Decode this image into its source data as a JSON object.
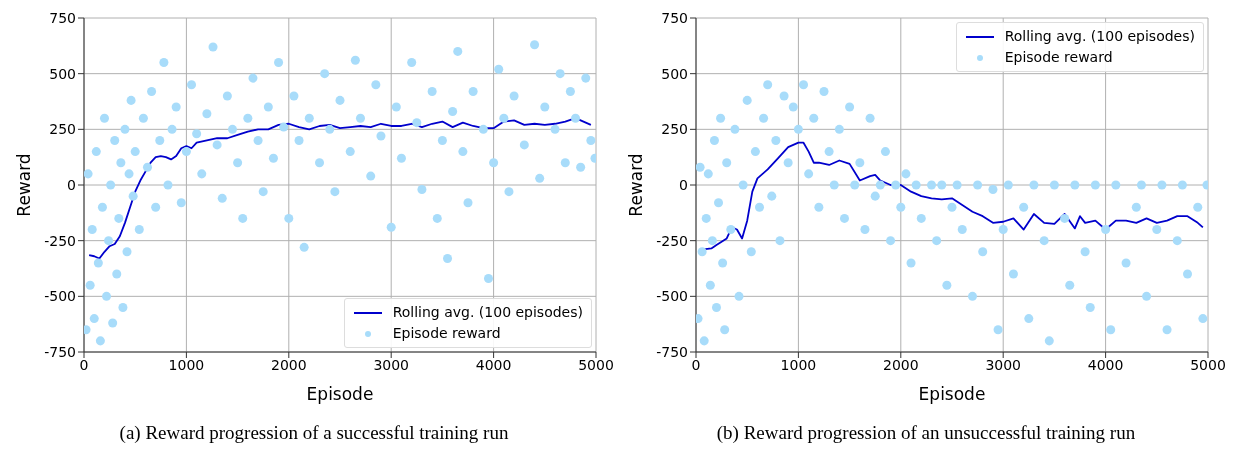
{
  "chart_data": [
    {
      "type": "scatter",
      "xlabel": "Episode",
      "ylabel": "Reward",
      "annotations": [
        "(a) Reward progression of a successful training run"
      ],
      "xlim": [
        0,
        5000
      ],
      "xticks": [
        0,
        1000,
        2000,
        3000,
        4000,
        5000
      ],
      "ylim": [
        -750,
        750
      ],
      "yticks": [
        -750,
        -500,
        -250,
        0,
        250,
        500,
        750
      ],
      "grid": true,
      "legend": "bottom right",
      "series": [
        {
          "name": "Rolling avg. (100 episodes)",
          "type": "line",
          "marker": "none",
          "color": "#0000cc",
          "x": [
            50,
            100,
            150,
            200,
            250,
            300,
            350,
            400,
            450,
            500,
            550,
            600,
            650,
            700,
            750,
            800,
            850,
            900,
            950,
            1000,
            1050,
            1100,
            1200,
            1300,
            1400,
            1500,
            1600,
            1700,
            1800,
            1900,
            2000,
            2100,
            2200,
            2300,
            2400,
            2500,
            2600,
            2700,
            2800,
            2900,
            3000,
            3100,
            3200,
            3300,
            3400,
            3500,
            3600,
            3700,
            3800,
            3900,
            4000,
            4100,
            4200,
            4300,
            4400,
            4500,
            4600,
            4700,
            4800,
            4900,
            4950
          ],
          "values": [
            -315,
            -320,
            -330,
            -300,
            -275,
            -265,
            -230,
            -170,
            -100,
            -30,
            20,
            60,
            100,
            125,
            130,
            125,
            115,
            130,
            165,
            175,
            165,
            190,
            200,
            210,
            210,
            225,
            240,
            250,
            250,
            270,
            275,
            260,
            250,
            265,
            270,
            255,
            260,
            265,
            260,
            275,
            265,
            265,
            275,
            260,
            275,
            285,
            260,
            280,
            265,
            255,
            255,
            285,
            290,
            270,
            275,
            270,
            275,
            285,
            300,
            280,
            270
          ]
        },
        {
          "name": "Episode reward",
          "type": "scatter",
          "marker": "circle",
          "color": "#a8dcfa",
          "x": [
            20,
            40,
            60,
            80,
            100,
            120,
            140,
            160,
            180,
            200,
            220,
            240,
            260,
            280,
            300,
            320,
            340,
            360,
            380,
            400,
            420,
            440,
            460,
            480,
            500,
            540,
            580,
            620,
            660,
            700,
            740,
            780,
            820,
            860,
            900,
            950,
            1000,
            1050,
            1100,
            1150,
            1200,
            1260,
            1300,
            1350,
            1400,
            1450,
            1500,
            1550,
            1600,
            1650,
            1700,
            1750,
            1800,
            1850,
            1900,
            1950,
            2000,
            2050,
            2100,
            2150,
            2200,
            2300,
            2350,
            2400,
            2450,
            2500,
            2600,
            2650,
            2700,
            2800,
            2850,
            2900,
            3000,
            3050,
            3100,
            3200,
            3250,
            3300,
            3400,
            3450,
            3500,
            3550,
            3600,
            3650,
            3700,
            3750,
            3800,
            3900,
            3950,
            4000,
            4050,
            4100,
            4150,
            4200,
            4300,
            4400,
            4450,
            4500,
            4600,
            4650,
            4700,
            4750,
            4800,
            4850,
            4900,
            4950,
            4990
          ],
          "values": [
            -650,
            50,
            -450,
            -200,
            -600,
            150,
            -350,
            -700,
            -100,
            300,
            -500,
            -250,
            0,
            -620,
            200,
            -400,
            -150,
            100,
            -550,
            250,
            -300,
            50,
            380,
            -50,
            150,
            -200,
            300,
            80,
            420,
            -100,
            200,
            550,
            0,
            250,
            350,
            -80,
            150,
            450,
            230,
            50,
            320,
            620,
            180,
            -60,
            400,
            250,
            100,
            -150,
            300,
            480,
            200,
            -30,
            350,
            120,
            550,
            260,
            -150,
            400,
            200,
            -280,
            300,
            100,
            500,
            250,
            -30,
            380,
            150,
            560,
            300,
            40,
            450,
            220,
            -190,
            350,
            120,
            550,
            280,
            -20,
            420,
            -150,
            200,
            -330,
            330,
            600,
            150,
            -80,
            420,
            250,
            -420,
            100,
            520,
            300,
            -30,
            400,
            180,
            630,
            30,
            350,
            250,
            500,
            100,
            420,
            300,
            80,
            480,
            200,
            120
          ]
        }
      ]
    },
    {
      "type": "scatter",
      "xlabel": "Episode",
      "ylabel": "Reward",
      "annotations": [
        "(b) Reward progression of an unsuccessful training run"
      ],
      "xlim": [
        0,
        5000
      ],
      "xticks": [
        0,
        1000,
        2000,
        3000,
        4000,
        5000
      ],
      "ylim": [
        -750,
        750
      ],
      "yticks": [
        -750,
        -500,
        -250,
        0,
        250,
        500,
        750
      ],
      "grid": true,
      "legend": "top right",
      "series": [
        {
          "name": "Rolling avg. (100 episodes)",
          "type": "line",
          "marker": "none",
          "color": "#0000cc",
          "x": [
            50,
            150,
            200,
            300,
            350,
            400,
            450,
            500,
            550,
            600,
            700,
            800,
            900,
            1000,
            1050,
            1100,
            1150,
            1200,
            1300,
            1400,
            1500,
            1600,
            1700,
            1750,
            1800,
            1900,
            2000,
            2100,
            2200,
            2300,
            2400,
            2500,
            2600,
            2700,
            2800,
            2900,
            3000,
            3100,
            3200,
            3300,
            3400,
            3500,
            3600,
            3700,
            3750,
            3800,
            3900,
            4000,
            4100,
            4200,
            4300,
            4400,
            4500,
            4600,
            4700,
            4800,
            4900,
            4950
          ],
          "values": [
            -290,
            -285,
            -270,
            -240,
            -190,
            -200,
            -240,
            -160,
            -30,
            30,
            70,
            120,
            170,
            190,
            190,
            150,
            100,
            100,
            90,
            110,
            95,
            20,
            40,
            45,
            20,
            0,
            0,
            -30,
            -50,
            -60,
            -65,
            -60,
            -90,
            -120,
            -140,
            -170,
            -165,
            -150,
            -200,
            -130,
            -170,
            -175,
            -130,
            -195,
            -140,
            -170,
            -160,
            -200,
            -160,
            -160,
            -170,
            -150,
            -170,
            -160,
            -140,
            -140,
            -170,
            -190
          ]
        },
        {
          "name": "Episode reward",
          "type": "scatter",
          "marker": "circle",
          "color": "#a8dcfa",
          "x": [
            20,
            40,
            60,
            80,
            100,
            120,
            140,
            160,
            180,
            200,
            220,
            240,
            260,
            280,
            300,
            340,
            380,
            420,
            460,
            500,
            540,
            580,
            620,
            660,
            700,
            740,
            780,
            820,
            860,
            900,
            950,
            1000,
            1050,
            1100,
            1150,
            1200,
            1250,
            1300,
            1350,
            1400,
            1450,
            1500,
            1550,
            1600,
            1650,
            1700,
            1750,
            1800,
            1850,
            1900,
            1950,
            2000,
            2050,
            2100,
            2150,
            2200,
            2300,
            2350,
            2400,
            2450,
            2500,
            2550,
            2600,
            2700,
            2750,
            2800,
            2900,
            2950,
            3000,
            3050,
            3100,
            3200,
            3250,
            3300,
            3400,
            3450,
            3500,
            3600,
            3650,
            3700,
            3800,
            3850,
            3900,
            4000,
            4050,
            4100,
            4200,
            4300,
            4350,
            4400,
            4500,
            4550,
            4600,
            4700,
            4750,
            4800,
            4900,
            4950,
            4990
          ],
          "values": [
            -600,
            80,
            -300,
            -700,
            -150,
            50,
            -450,
            -250,
            200,
            -550,
            -80,
            300,
            -350,
            -650,
            100,
            -200,
            250,
            -500,
            0,
            380,
            -300,
            150,
            -100,
            300,
            450,
            -50,
            200,
            -250,
            400,
            100,
            350,
            250,
            450,
            50,
            300,
            -100,
            420,
            150,
            0,
            250,
            -150,
            350,
            0,
            100,
            -200,
            300,
            -50,
            0,
            150,
            -250,
            0,
            -100,
            50,
            -350,
            0,
            -150,
            0,
            -250,
            0,
            -450,
            -100,
            0,
            -200,
            -500,
            0,
            -300,
            -20,
            -650,
            -200,
            0,
            -400,
            -100,
            -600,
            0,
            -250,
            -700,
            0,
            -150,
            -450,
            0,
            -300,
            -550,
            0,
            -200,
            -650,
            0,
            -350,
            -100,
            0,
            -500,
            -200,
            0,
            -650,
            -250,
            0,
            -400,
            -100,
            -600,
            0
          ]
        }
      ]
    }
  ]
}
